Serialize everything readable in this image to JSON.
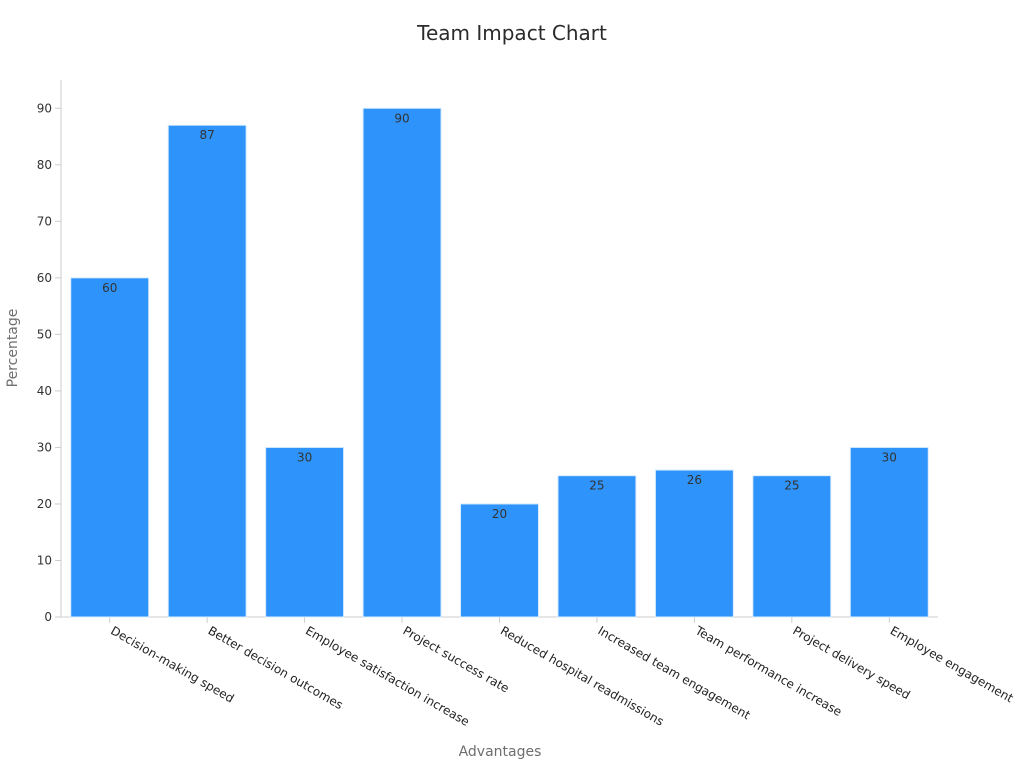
{
  "chart_data": {
    "type": "bar",
    "title": "Team Impact Chart",
    "xlabel": "Advantages",
    "ylabel": "Percentage",
    "categories": [
      "Decision-making speed",
      "Better decision outcomes",
      "Employee satisfaction increase",
      "Project success rate",
      "Reduced hospital readmissions",
      "Increased team engagement",
      "Team performance increase",
      "Project delivery speed",
      "Employee engagement"
    ],
    "values": [
      60,
      87,
      30,
      90,
      20,
      25,
      26,
      25,
      30
    ],
    "ylim": [
      0,
      95
    ],
    "yticks": [
      0,
      10,
      20,
      30,
      40,
      50,
      60,
      70,
      80,
      90
    ],
    "bar_color": "#2e93fa",
    "grid": false,
    "legend": "none"
  }
}
